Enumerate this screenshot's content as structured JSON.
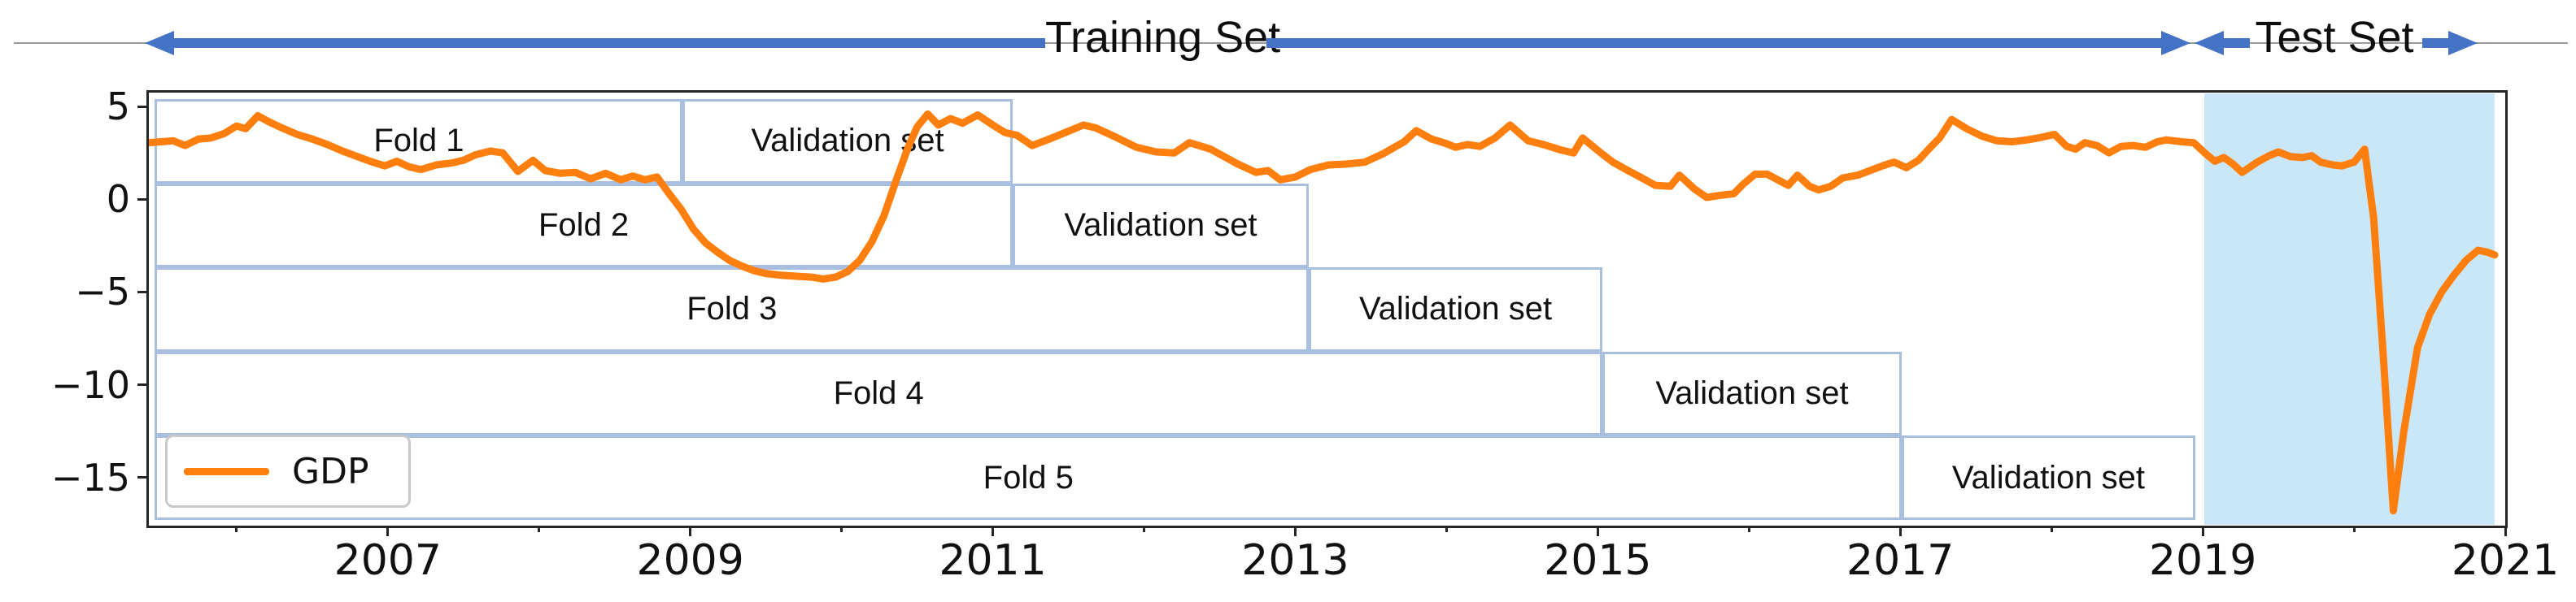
{
  "header": {
    "training_label": "Training Set",
    "test_label": "Test Set",
    "arrow_color": "#4472c4",
    "rule_color": "#9a9a9a"
  },
  "chart_data": {
    "type": "line",
    "title": "",
    "xlabel": "",
    "ylabel": "",
    "xlim": [
      2005.42,
      2021.0
    ],
    "ylim": [
      -17.6,
      5.75
    ],
    "x_major_ticks": [
      2007,
      2009,
      2011,
      2013,
      2015,
      2017,
      2019,
      2021
    ],
    "x_tick_labels": [
      "2007",
      "2009",
      "2011",
      "2013",
      "2015",
      "2017",
      "2019",
      "2021"
    ],
    "x_minor_ticks": [
      2006,
      2008,
      2010,
      2012,
      2014,
      2016,
      2018,
      2020
    ],
    "y_ticks": [
      5,
      0,
      -5,
      -10,
      -15
    ],
    "y_tick_labels": [
      "5",
      "0",
      "−5",
      "−10",
      "−15"
    ],
    "grid": false,
    "legend": {
      "label": "GDP",
      "position": "lower left"
    },
    "line_color": "#ff7f0e",
    "box_border_color": "#a9bfe0",
    "test_region": {
      "start_year": 2019.01,
      "end_year": 2020.93,
      "fill_color": "#cae6f9"
    },
    "folds": [
      {
        "label": "Fold 1",
        "validation_label": "Validation set",
        "train_start": 2005.46,
        "train_end": 2008.95,
        "val_end": 2011.13
      },
      {
        "label": "Fold 2",
        "validation_label": "Validation set",
        "train_start": 2005.46,
        "train_end": 2011.13,
        "val_end": 2013.09
      },
      {
        "label": "Fold 3",
        "validation_label": "Validation set",
        "train_start": 2005.46,
        "train_end": 2013.09,
        "val_end": 2015.03
      },
      {
        "label": "Fold 4",
        "validation_label": "Validation set",
        "train_start": 2005.46,
        "train_end": 2015.03,
        "val_end": 2017.01
      },
      {
        "label": "Fold 5",
        "validation_label": "Validation set",
        "train_start": 2005.46,
        "train_end": 2017.01,
        "val_end": 2018.95
      }
    ],
    "series": [
      {
        "name": "GDP",
        "color": "#ff7f0e",
        "points": [
          [
            2005.42,
            3.05
          ],
          [
            2005.5,
            3.1
          ],
          [
            2005.58,
            3.15
          ],
          [
            2005.66,
            2.9
          ],
          [
            2005.75,
            3.25
          ],
          [
            2005.83,
            3.3
          ],
          [
            2005.92,
            3.55
          ],
          [
            2006.0,
            3.95
          ],
          [
            2006.06,
            3.8
          ],
          [
            2006.14,
            4.5
          ],
          [
            2006.22,
            4.15
          ],
          [
            2006.3,
            3.85
          ],
          [
            2006.4,
            3.5
          ],
          [
            2006.5,
            3.25
          ],
          [
            2006.6,
            2.95
          ],
          [
            2006.7,
            2.6
          ],
          [
            2006.8,
            2.3
          ],
          [
            2006.9,
            2.0
          ],
          [
            2006.98,
            1.8
          ],
          [
            2007.06,
            2.05
          ],
          [
            2007.14,
            1.75
          ],
          [
            2007.22,
            1.6
          ],
          [
            2007.32,
            1.85
          ],
          [
            2007.42,
            1.95
          ],
          [
            2007.5,
            2.1
          ],
          [
            2007.58,
            2.4
          ],
          [
            2007.68,
            2.6
          ],
          [
            2007.76,
            2.5
          ],
          [
            2007.86,
            1.5
          ],
          [
            2007.96,
            2.1
          ],
          [
            2008.04,
            1.55
          ],
          [
            2008.14,
            1.4
          ],
          [
            2008.24,
            1.45
          ],
          [
            2008.34,
            1.1
          ],
          [
            2008.44,
            1.4
          ],
          [
            2008.54,
            1.05
          ],
          [
            2008.62,
            1.25
          ],
          [
            2008.7,
            1.05
          ],
          [
            2008.78,
            1.2
          ],
          [
            2008.86,
            0.3
          ],
          [
            2008.94,
            -0.55
          ],
          [
            2009.02,
            -1.6
          ],
          [
            2009.1,
            -2.35
          ],
          [
            2009.18,
            -2.85
          ],
          [
            2009.26,
            -3.3
          ],
          [
            2009.34,
            -3.6
          ],
          [
            2009.42,
            -3.85
          ],
          [
            2009.5,
            -4.0
          ],
          [
            2009.6,
            -4.1
          ],
          [
            2009.7,
            -4.15
          ],
          [
            2009.8,
            -4.2
          ],
          [
            2009.88,
            -4.3
          ],
          [
            2009.96,
            -4.2
          ],
          [
            2010.04,
            -3.9
          ],
          [
            2010.12,
            -3.3
          ],
          [
            2010.2,
            -2.3
          ],
          [
            2010.28,
            -0.9
          ],
          [
            2010.36,
            1.0
          ],
          [
            2010.44,
            2.8
          ],
          [
            2010.5,
            3.9
          ],
          [
            2010.57,
            4.6
          ],
          [
            2010.64,
            4.0
          ],
          [
            2010.72,
            4.35
          ],
          [
            2010.8,
            4.1
          ],
          [
            2010.9,
            4.55
          ],
          [
            2011.0,
            4.0
          ],
          [
            2011.08,
            3.6
          ],
          [
            2011.16,
            3.45
          ],
          [
            2011.26,
            2.9
          ],
          [
            2011.36,
            3.2
          ],
          [
            2011.48,
            3.6
          ],
          [
            2011.6,
            4.0
          ],
          [
            2011.68,
            3.85
          ],
          [
            2011.8,
            3.4
          ],
          [
            2011.95,
            2.8
          ],
          [
            2012.08,
            2.55
          ],
          [
            2012.2,
            2.5
          ],
          [
            2012.3,
            3.05
          ],
          [
            2012.44,
            2.7
          ],
          [
            2012.62,
            1.9
          ],
          [
            2012.74,
            1.45
          ],
          [
            2012.82,
            1.55
          ],
          [
            2012.9,
            1.05
          ],
          [
            2013.0,
            1.2
          ],
          [
            2013.1,
            1.6
          ],
          [
            2013.22,
            1.85
          ],
          [
            2013.34,
            1.9
          ],
          [
            2013.46,
            2.0
          ],
          [
            2013.58,
            2.45
          ],
          [
            2013.72,
            3.1
          ],
          [
            2013.8,
            3.7
          ],
          [
            2013.9,
            3.25
          ],
          [
            2014.0,
            3.0
          ],
          [
            2014.06,
            2.8
          ],
          [
            2014.14,
            2.95
          ],
          [
            2014.22,
            2.85
          ],
          [
            2014.32,
            3.3
          ],
          [
            2014.42,
            4.0
          ],
          [
            2014.54,
            3.15
          ],
          [
            2014.64,
            2.95
          ],
          [
            2014.76,
            2.65
          ],
          [
            2014.84,
            2.5
          ],
          [
            2014.9,
            3.3
          ],
          [
            2015.02,
            2.5
          ],
          [
            2015.1,
            2.0
          ],
          [
            2015.2,
            1.55
          ],
          [
            2015.28,
            1.2
          ],
          [
            2015.38,
            0.75
          ],
          [
            2015.48,
            0.7
          ],
          [
            2015.54,
            1.3
          ],
          [
            2015.64,
            0.55
          ],
          [
            2015.72,
            0.1
          ],
          [
            2015.8,
            0.2
          ],
          [
            2015.9,
            0.3
          ],
          [
            2015.96,
            0.8
          ],
          [
            2016.04,
            1.35
          ],
          [
            2016.12,
            1.35
          ],
          [
            2016.2,
            1.0
          ],
          [
            2016.26,
            0.75
          ],
          [
            2016.32,
            1.3
          ],
          [
            2016.4,
            0.7
          ],
          [
            2016.46,
            0.5
          ],
          [
            2016.54,
            0.7
          ],
          [
            2016.62,
            1.15
          ],
          [
            2016.72,
            1.3
          ],
          [
            2016.8,
            1.55
          ],
          [
            2016.9,
            1.85
          ],
          [
            2016.96,
            2.0
          ],
          [
            2017.04,
            1.7
          ],
          [
            2017.12,
            2.1
          ],
          [
            2017.2,
            2.8
          ],
          [
            2017.26,
            3.3
          ],
          [
            2017.34,
            4.3
          ],
          [
            2017.44,
            3.8
          ],
          [
            2017.54,
            3.4
          ],
          [
            2017.64,
            3.15
          ],
          [
            2017.74,
            3.1
          ],
          [
            2017.84,
            3.2
          ],
          [
            2017.94,
            3.35
          ],
          [
            2018.02,
            3.5
          ],
          [
            2018.1,
            2.85
          ],
          [
            2018.16,
            2.7
          ],
          [
            2018.22,
            3.05
          ],
          [
            2018.3,
            2.9
          ],
          [
            2018.38,
            2.5
          ],
          [
            2018.46,
            2.85
          ],
          [
            2018.54,
            2.9
          ],
          [
            2018.62,
            2.8
          ],
          [
            2018.7,
            3.1
          ],
          [
            2018.76,
            3.2
          ],
          [
            2018.86,
            3.1
          ],
          [
            2018.94,
            3.05
          ],
          [
            2019.02,
            2.45
          ],
          [
            2019.08,
            2.05
          ],
          [
            2019.14,
            2.25
          ],
          [
            2019.2,
            1.9
          ],
          [
            2019.26,
            1.45
          ],
          [
            2019.36,
            2.0
          ],
          [
            2019.44,
            2.35
          ],
          [
            2019.5,
            2.55
          ],
          [
            2019.58,
            2.3
          ],
          [
            2019.66,
            2.25
          ],
          [
            2019.72,
            2.35
          ],
          [
            2019.78,
            2.0
          ],
          [
            2019.86,
            1.85
          ],
          [
            2019.92,
            1.8
          ],
          [
            2020.0,
            2.0
          ],
          [
            2020.07,
            2.7
          ],
          [
            2020.13,
            -1.0
          ],
          [
            2020.19,
            -8.0
          ],
          [
            2020.26,
            -16.8
          ],
          [
            2020.33,
            -12.5
          ],
          [
            2020.42,
            -8.0
          ],
          [
            2020.5,
            -6.2
          ],
          [
            2020.58,
            -5.0
          ],
          [
            2020.66,
            -4.1
          ],
          [
            2020.74,
            -3.3
          ],
          [
            2020.82,
            -2.75
          ],
          [
            2020.88,
            -2.85
          ],
          [
            2020.93,
            -3.0
          ]
        ]
      }
    ]
  }
}
